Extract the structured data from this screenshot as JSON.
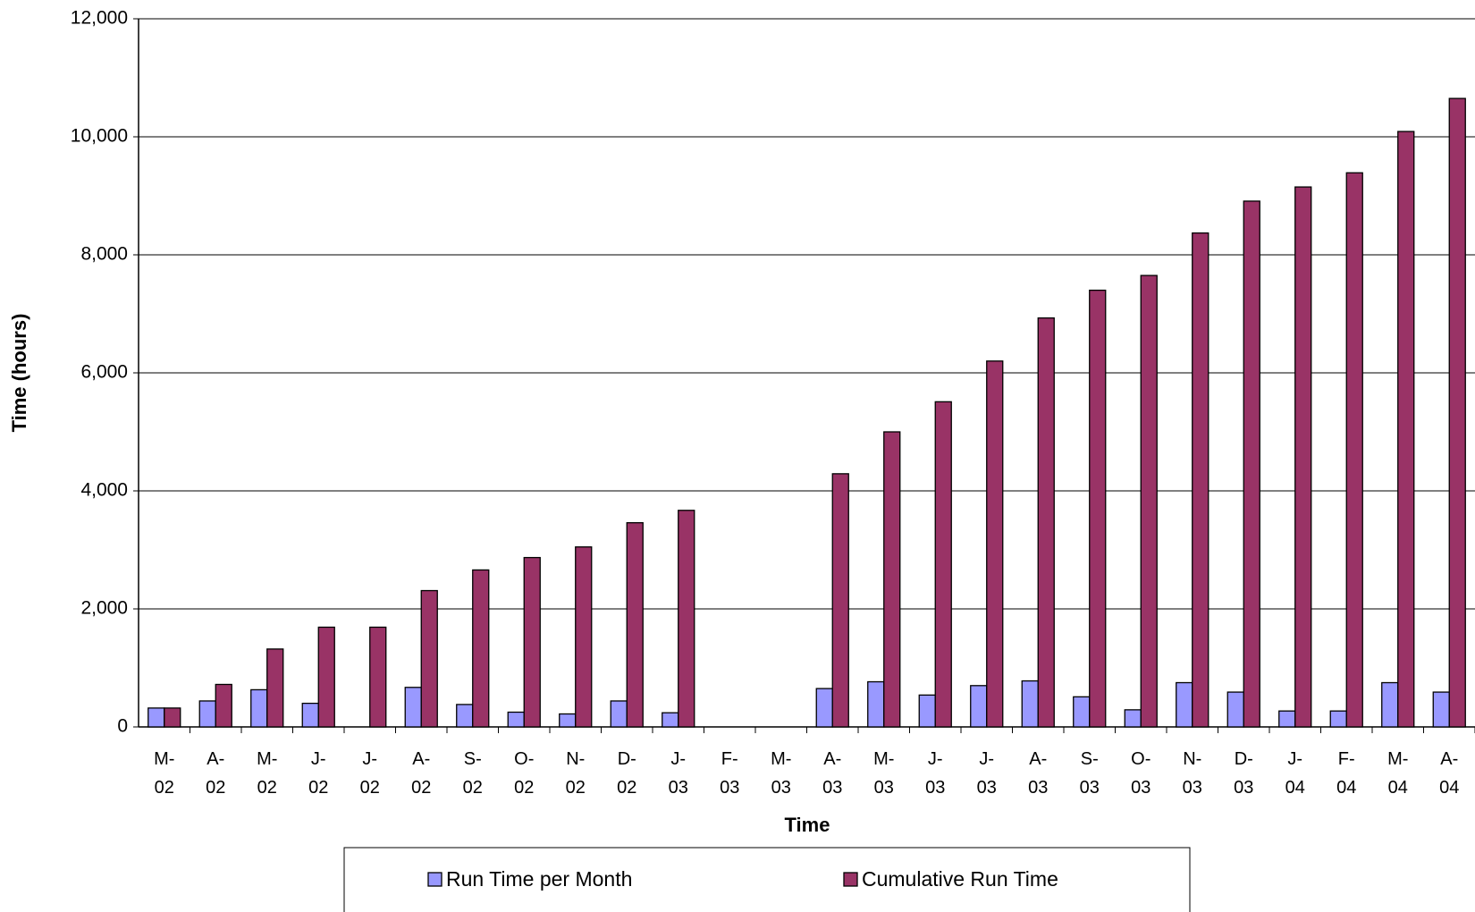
{
  "chart_data": {
    "type": "bar",
    "x_label": "Time",
    "y_label": "Time (hours)",
    "categories": [
      "M-02",
      "A-02",
      "M-02",
      "J-02",
      "J-02",
      "A-02",
      "S-02",
      "O-02",
      "N-02",
      "D-02",
      "J-03",
      "F-03",
      "M-03",
      "A-03",
      "M-03",
      "J-03",
      "J-03",
      "A-03",
      "S-03",
      "O-03",
      "N-03",
      "D-03",
      "J-04",
      "F-04",
      "M-04",
      "A-04"
    ],
    "series": [
      {
        "name": "Run Time per Month",
        "color": "#9999ff",
        "values": [
          320,
          440,
          630,
          400,
          null,
          670,
          380,
          250,
          220,
          440,
          240,
          null,
          null,
          650,
          765,
          540,
          700,
          780,
          510,
          290,
          750,
          590,
          270,
          270,
          750,
          590
        ]
      },
      {
        "name": "Cumulative Run Time",
        "color": "#993366",
        "values": [
          320,
          720,
          1320,
          1690,
          1690,
          2310,
          2660,
          2870,
          3050,
          3460,
          3670,
          null,
          null,
          4290,
          5000,
          5510,
          6200,
          6930,
          7400,
          7650,
          8370,
          8910,
          9150,
          9390,
          10090,
          10650
        ]
      }
    ],
    "ylim": [
      0,
      12000
    ],
    "yticks": [
      0,
      {
        "value": 2000,
        "label": "2,000"
      },
      {
        "value": 4000,
        "label": "4,000"
      },
      {
        "value": 6000,
        "label": "6,000"
      },
      {
        "value": 8000,
        "label": "8,000"
      },
      {
        "value": 10000,
        "label": "10,000"
      },
      {
        "value": 12000,
        "label": "12,000"
      }
    ],
    "grid": true,
    "legend": "bottom"
  }
}
